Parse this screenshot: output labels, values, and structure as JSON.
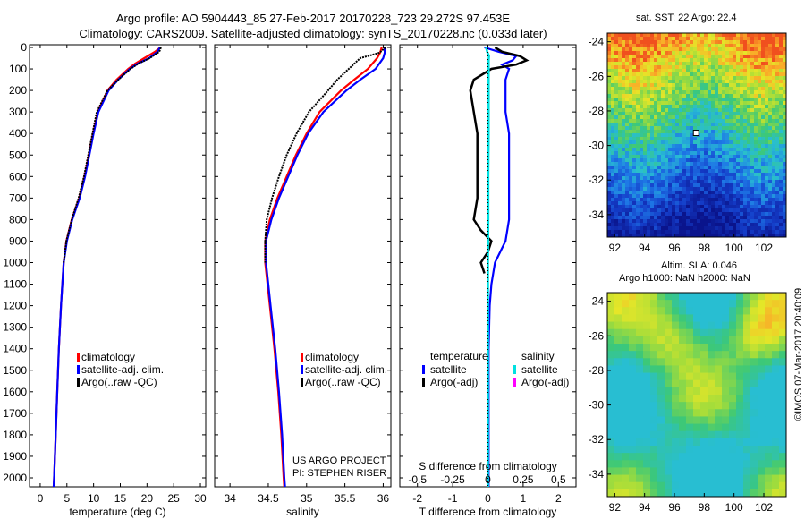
{
  "header": {
    "line1": "Argo profile: AO 5904443_85 27-Feb-2017 20170228_723 29.272S 97.453E",
    "line2": "Climatology: CARS2009. Satellite-adjusted climatology: synTS_20170228.nc (0.033d later)"
  },
  "colors": {
    "climatology": "#ff0000",
    "satellite": "#0000ff",
    "argo": "#000000",
    "sal_satellite": "#00e0e0",
    "sal_argo": "#ff00ff"
  },
  "chart_data": [
    {
      "type": "line",
      "panel": "temperature",
      "xlabel": "temperature (deg C)",
      "ylabel": "",
      "xlim": [
        -2,
        31
      ],
      "ylim": [
        2100,
        0
      ],
      "xticks": [
        0,
        5,
        10,
        15,
        20,
        25,
        30
      ],
      "yticks": [
        0,
        100,
        200,
        300,
        400,
        500,
        600,
        700,
        800,
        900,
        1000,
        1100,
        1200,
        1300,
        1400,
        1500,
        1600,
        1700,
        1800,
        1900,
        2000
      ],
      "legend": [
        "climatology",
        "satellite-adj. clim.",
        "Argo(..raw -QC)"
      ],
      "series": [
        {
          "name": "climatology",
          "y": [
            0,
            20,
            50,
            75,
            100,
            150,
            200,
            300,
            400,
            500,
            600,
            700,
            800,
            900,
            1000,
            1200,
            1400,
            1600,
            1800,
            2000,
            2050
          ],
          "values": [
            22.5,
            21.5,
            19.5,
            17.8,
            16.5,
            14.3,
            12.6,
            10.8,
            9.9,
            9.1,
            8.3,
            7.3,
            5.9,
            4.9,
            4.4,
            3.9,
            3.5,
            3.2,
            2.9,
            2.6,
            2.5
          ]
        },
        {
          "name": "satellite-adj. clim.",
          "y": [
            0,
            20,
            50,
            75,
            100,
            150,
            200,
            300,
            400,
            500,
            600,
            700,
            800,
            900,
            1000,
            1200,
            1400,
            1600,
            1800,
            2000,
            2050
          ],
          "values": [
            22.4,
            22.0,
            20.4,
            18.3,
            16.8,
            14.6,
            12.8,
            10.9,
            10.0,
            9.2,
            8.4,
            7.4,
            6.0,
            5.0,
            4.4,
            3.9,
            3.5,
            3.2,
            2.9,
            2.6,
            2.5
          ]
        },
        {
          "name": "Argo(..raw -QC)",
          "y": [
            0,
            20,
            50,
            75,
            100,
            150,
            200,
            300,
            400,
            500,
            600,
            700,
            800,
            900,
            1000
          ],
          "values": [
            22.6,
            22.3,
            20.5,
            18.4,
            16.9,
            14.6,
            12.6,
            10.6,
            9.8,
            9.0,
            8.2,
            7.2,
            5.9,
            4.9,
            4.4
          ]
        }
      ]
    },
    {
      "type": "line",
      "panel": "salinity",
      "xlabel": "salinity",
      "ylabel": "",
      "xlim": [
        33.8,
        36.1
      ],
      "ylim": [
        2100,
        0
      ],
      "xticks": [
        34,
        34.5,
        35,
        35.5,
        36
      ],
      "legend": [
        "climatology",
        "satellite-adj. clim.",
        "Argo(..raw -QC)"
      ],
      "series": [
        {
          "name": "climatology",
          "y": [
            0,
            25,
            50,
            100,
            150,
            200,
            300,
            400,
            500,
            600,
            700,
            800,
            900,
            1000,
            1200,
            1400,
            1600,
            1800,
            2000,
            2050
          ],
          "values": [
            35.98,
            35.96,
            35.92,
            35.8,
            35.62,
            35.45,
            35.17,
            35.0,
            34.86,
            34.74,
            34.62,
            34.52,
            34.46,
            34.46,
            34.52,
            34.58,
            34.63,
            34.67,
            34.7,
            34.71
          ]
        },
        {
          "name": "satellite-adj. clim.",
          "y": [
            0,
            25,
            50,
            100,
            150,
            200,
            300,
            400,
            500,
            600,
            700,
            800,
            900,
            1000,
            1200,
            1400,
            1600,
            1800,
            2000,
            2050
          ],
          "values": [
            36.02,
            36.02,
            36.0,
            35.9,
            35.7,
            35.52,
            35.22,
            35.02,
            34.88,
            34.76,
            34.64,
            34.54,
            34.47,
            34.47,
            34.53,
            34.59,
            34.64,
            34.68,
            34.71,
            34.72
          ]
        },
        {
          "name": "Argo(..raw -QC)",
          "y": [
            0,
            25,
            50,
            100,
            150,
            200,
            300,
            400,
            500,
            600,
            700,
            800,
            900,
            1000
          ],
          "values": [
            36.03,
            35.95,
            35.7,
            35.55,
            35.4,
            35.28,
            35.03,
            34.87,
            34.74,
            34.64,
            34.55,
            34.48,
            34.46,
            34.46
          ]
        }
      ]
    },
    {
      "type": "line",
      "panel": "difference",
      "xlabel": "T difference from climatology",
      "xlabel2": "S difference from climatology",
      "xlim": [
        -2.5,
        2.5
      ],
      "ylim": [
        2100,
        0
      ],
      "xticks": [
        -2,
        -1,
        0,
        1,
        2
      ],
      "xticks2": [
        -0.5,
        -0.25,
        0,
        0.25,
        0.5
      ],
      "legend_heads": [
        "temperature",
        "salinity"
      ],
      "legend": [
        "satellite",
        "Argo(-adj)",
        "satellite",
        "Argo(-adj)"
      ],
      "series": [
        {
          "name": "satellite",
          "y": [
            0,
            20,
            40,
            60,
            80,
            100,
            150,
            200,
            300,
            400,
            500,
            600,
            700,
            800,
            900,
            1000,
            1100,
            1200,
            1400,
            1600,
            1800,
            2000,
            2050
          ],
          "values": [
            -0.1,
            0.3,
            0.8,
            0.7,
            0.4,
            0.6,
            0.5,
            0.5,
            0.5,
            0.6,
            0.6,
            0.6,
            0.6,
            0.6,
            0.5,
            0.2,
            0.1,
            0.05,
            0.02,
            0.02,
            0.02,
            0.02,
            0.02
          ]
        },
        {
          "name": "Argo(-adj)",
          "y": [
            0,
            20,
            40,
            60,
            80,
            100,
            150,
            200,
            300,
            400,
            500,
            600,
            700,
            800,
            850,
            900,
            950,
            1000,
            1050
          ],
          "values": [
            0.2,
            0.4,
            0.9,
            1.1,
            0.8,
            0.1,
            -0.4,
            -0.5,
            -0.4,
            -0.3,
            -0.3,
            -0.3,
            -0.3,
            -0.4,
            -0.2,
            0.1,
            0.0,
            -0.2,
            -0.1
          ]
        },
        {
          "name": "satellite",
          "y": [
            0,
            20,
            40,
            60,
            80,
            100,
            200,
            400,
            600,
            800,
            1000,
            1200,
            1600,
            2000,
            2050
          ],
          "values": [
            -0.05,
            -0.02,
            0.03,
            0.02,
            0.02,
            0.02,
            0.02,
            0.02,
            0.01,
            0.01,
            0.0,
            0.0,
            0.0,
            0.0,
            0.0
          ]
        },
        {
          "name": "Argo(-adj)",
          "y": [],
          "values": []
        }
      ]
    },
    {
      "type": "heatmap",
      "panel": "sst_map",
      "title": "sat. SST: 22 Argo: 22.4",
      "xlim": [
        91.5,
        103.5
      ],
      "ylim": [
        -35.3,
        -23.5
      ],
      "xticks": [
        92,
        94,
        96,
        98,
        100,
        102
      ],
      "yticks": [
        -24,
        -26,
        -28,
        -30,
        -32,
        -34
      ],
      "argo_position": {
        "lon": 97.453,
        "lat": -29.272
      }
    },
    {
      "type": "heatmap",
      "panel": "sla_map",
      "title": "Altim. SLA: 0.046",
      "subtitle": "Argo h1000: NaN h2000: NaN",
      "xlim": [
        91.5,
        103.5
      ],
      "ylim": [
        -35.3,
        -23.5
      ],
      "xticks": [
        92,
        94,
        96,
        98,
        100,
        102
      ],
      "yticks": [
        -24,
        -26,
        -28,
        -30,
        -32,
        -34
      ]
    }
  ],
  "credit": {
    "line1": "US ARGO PROJECT",
    "line2": "PI: STEPHEN RISER",
    "stamp": "©IMOS 07-Mar-2017 20:40:09"
  }
}
